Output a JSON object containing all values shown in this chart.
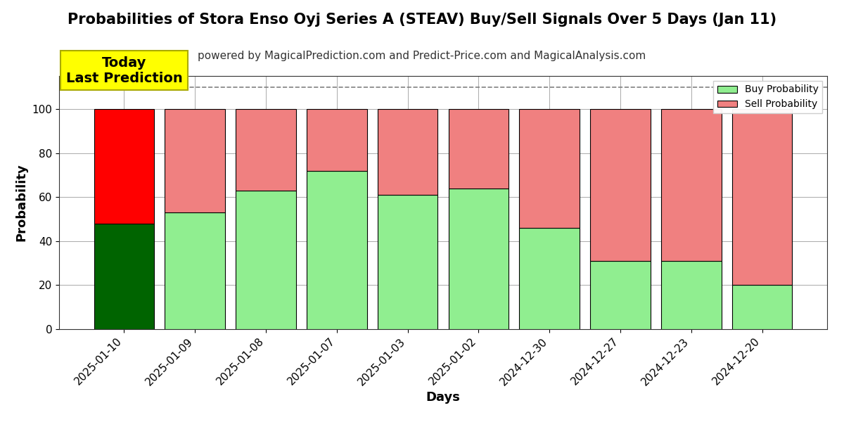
{
  "title": "Probabilities of Stora Enso Oyj Series A (STEAV) Buy/Sell Signals Over 5 Days (Jan 11)",
  "subtitle": "powered by MagicalPrediction.com and Predict-Price.com and MagicalAnalysis.com",
  "xlabel": "Days",
  "ylabel": "Probability",
  "categories": [
    "2025-01-10",
    "2025-01-09",
    "2025-01-08",
    "2025-01-07",
    "2025-01-03",
    "2025-01-02",
    "2024-12-30",
    "2024-12-27",
    "2024-12-23",
    "2024-12-20"
  ],
  "buy_values": [
    48,
    53,
    63,
    72,
    61,
    64,
    46,
    31,
    31,
    20
  ],
  "sell_values": [
    52,
    47,
    37,
    28,
    39,
    36,
    54,
    69,
    69,
    80
  ],
  "buy_color_today": "#006400",
  "sell_color_today": "#ff0000",
  "buy_color_rest": "#90EE90",
  "sell_color_rest": "#F08080",
  "today_annotation": "Today\nLast Prediction",
  "ylim": [
    0,
    115
  ],
  "yticks": [
    0,
    20,
    40,
    60,
    80,
    100
  ],
  "dashed_line_y": 110,
  "legend_buy": "Buy Probability",
  "legend_sell": "Sell Probability",
  "background_color": "#ffffff",
  "grid_color": "#aaaaaa",
  "bar_edge_color": "#000000",
  "annotation_bg_color": "#ffff00",
  "annotation_fontsize": 14,
  "title_fontsize": 15,
  "subtitle_fontsize": 11,
  "axis_label_fontsize": 13,
  "tick_fontsize": 11,
  "bar_width": 0.85
}
